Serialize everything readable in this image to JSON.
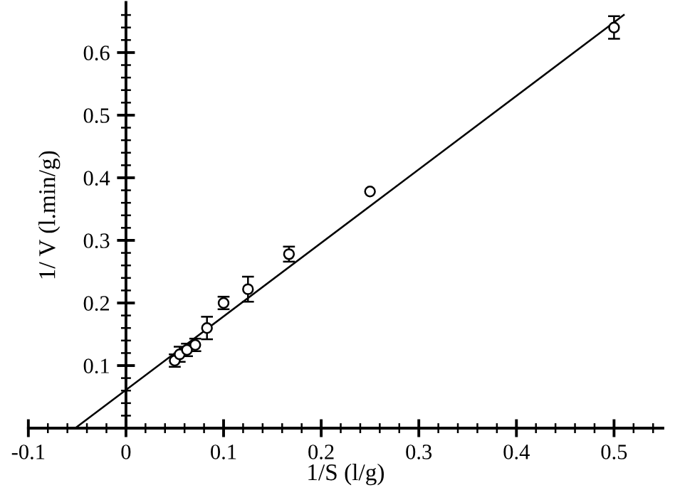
{
  "chart_data": {
    "type": "scatter",
    "xlabel": "1/S (l/g)",
    "ylabel": "1/ V (l.min/g)",
    "xlim": [
      -0.1,
      0.55
    ],
    "ylim": [
      0,
      0.68
    ],
    "xticks": [
      -0.1,
      {
        "value": -0.08,
        "label": null
      },
      {
        "value": -0.06,
        "label": null
      },
      {
        "value": -0.04,
        "label": null
      },
      {
        "value": -0.02,
        "label": null
      },
      0,
      {
        "value": 0.02,
        "label": null
      },
      {
        "value": 0.04,
        "label": null
      },
      {
        "value": 0.06,
        "label": null
      },
      {
        "value": 0.08,
        "label": null
      },
      0.1,
      {
        "value": 0.12,
        "label": null
      },
      {
        "value": 0.14,
        "label": null
      },
      {
        "value": 0.16,
        "label": null
      },
      {
        "value": 0.18,
        "label": null
      },
      0.2,
      {
        "value": 0.22,
        "label": null
      },
      {
        "value": 0.24,
        "label": null
      },
      {
        "value": 0.26,
        "label": null
      },
      {
        "value": 0.28,
        "label": null
      },
      0.3,
      {
        "value": 0.32,
        "label": null
      },
      {
        "value": 0.34,
        "label": null
      },
      {
        "value": 0.36,
        "label": null
      },
      {
        "value": 0.38,
        "label": null
      },
      0.4,
      {
        "value": 0.42,
        "label": null
      },
      {
        "value": 0.44,
        "label": null
      },
      {
        "value": 0.46,
        "label": null
      },
      {
        "value": 0.48,
        "label": null
      },
      0.5,
      {
        "value": 0.52,
        "label": null
      },
      {
        "value": 0.54,
        "label": null
      }
    ],
    "yticks": [
      {
        "value": 0.02,
        "label": null
      },
      {
        "value": 0.04,
        "label": null
      },
      {
        "value": 0.06,
        "label": null
      },
      {
        "value": 0.08,
        "label": null
      },
      0.1,
      {
        "value": 0.12,
        "label": null
      },
      {
        "value": 0.14,
        "label": null
      },
      {
        "value": 0.16,
        "label": null
      },
      {
        "value": 0.18,
        "label": null
      },
      0.2,
      {
        "value": 0.22,
        "label": null
      },
      {
        "value": 0.24,
        "label": null
      },
      {
        "value": 0.26,
        "label": null
      },
      {
        "value": 0.28,
        "label": null
      },
      0.3,
      {
        "value": 0.32,
        "label": null
      },
      {
        "value": 0.34,
        "label": null
      },
      {
        "value": 0.36,
        "label": null
      },
      {
        "value": 0.38,
        "label": null
      },
      0.4,
      {
        "value": 0.42,
        "label": null
      },
      {
        "value": 0.44,
        "label": null
      },
      {
        "value": 0.46,
        "label": null
      },
      {
        "value": 0.48,
        "label": null
      },
      0.5,
      {
        "value": 0.52,
        "label": null
      },
      {
        "value": 0.54,
        "label": null
      },
      {
        "value": 0.56,
        "label": null
      },
      {
        "value": 0.58,
        "label": null
      },
      0.6,
      {
        "value": 0.62,
        "label": null
      },
      {
        "value": 0.64,
        "label": null
      },
      {
        "value": 0.66,
        "label": null
      }
    ],
    "grid": false,
    "marker": "circle",
    "series": [
      {
        "color": "#000000",
        "x": [
          0.05,
          0.055,
          0.0625,
          0.071,
          0.083,
          0.1,
          0.125,
          0.167,
          0.25,
          0.5
        ],
        "values": [
          0.108,
          0.118,
          0.125,
          0.133,
          0.16,
          0.2,
          0.222,
          0.278,
          0.378,
          0.64
        ],
        "errors": [
          0.01,
          0.012,
          0.01,
          0.01,
          0.018,
          0.01,
          0.02,
          0.012,
          null,
          0.018
        ]
      },
      {
        "type": "line",
        "color": "#000000",
        "marker": "none",
        "line_style": "solid",
        "x": [
          -0.052,
          0.51
        ],
        "values": [
          0,
          0.66
        ]
      }
    ]
  }
}
